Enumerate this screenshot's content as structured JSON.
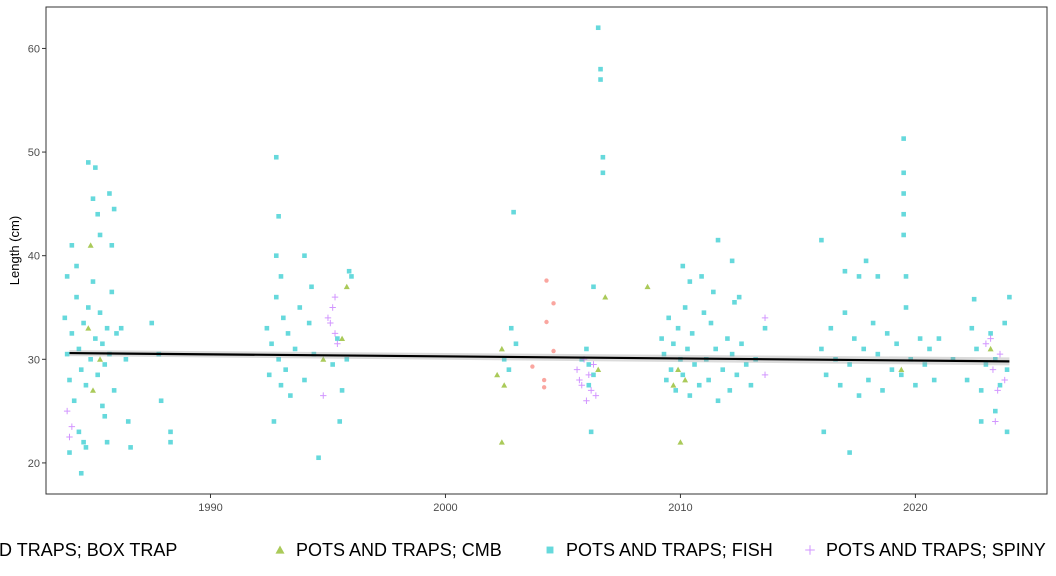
{
  "chart_data": {
    "type": "scatter",
    "title": "",
    "xlabel": "",
    "ylabel": "Length (cm)",
    "xlim": [
      1983.0,
      2025.6
    ],
    "ylim": [
      17.0,
      64.0
    ],
    "xticks": [
      1990,
      2000,
      2010,
      2020
    ],
    "yticks": [
      20,
      30,
      40,
      50,
      60
    ],
    "grid": false,
    "legend_position": "bottom",
    "series": [
      {
        "name": "POTS AND TRAPS; BOX TRAP",
        "marker": "circle",
        "color": "#F8766D",
        "points": [
          [
            2004.3,
            37.6
          ],
          [
            2004.6,
            35.4
          ],
          [
            2004.3,
            33.6
          ],
          [
            2004.2,
            28.0
          ],
          [
            2004.2,
            27.3
          ],
          [
            2004.6,
            30.8
          ],
          [
            2003.7,
            29.3
          ]
        ]
      },
      {
        "name": "POTS AND TRAPS; CMB",
        "marker": "triangle",
        "color": "#7CAE00",
        "points": [
          [
            1984.9,
            41.0
          ],
          [
            1984.8,
            33.0
          ],
          [
            1985.3,
            30.0
          ],
          [
            1985.0,
            27.0
          ],
          [
            1994.8,
            30.0
          ],
          [
            1995.8,
            37.0
          ],
          [
            1995.6,
            32.0
          ],
          [
            2002.4,
            22.0
          ],
          [
            2002.2,
            28.5
          ],
          [
            2002.5,
            27.5
          ],
          [
            2002.4,
            31.0
          ],
          [
            2006.8,
            36.0
          ],
          [
            2006.5,
            29.0
          ],
          [
            2008.6,
            37.0
          ],
          [
            2010.0,
            22.0
          ],
          [
            2009.7,
            27.5
          ],
          [
            2009.9,
            29.0
          ],
          [
            2010.2,
            28.0
          ],
          [
            2019.4,
            29.0
          ],
          [
            2023.2,
            31.0
          ]
        ]
      },
      {
        "name": "POTS AND TRAPS; FISH",
        "marker": "square",
        "color": "#00BFC4",
        "points": [
          [
            1983.8,
            34.0
          ],
          [
            1983.9,
            30.5
          ],
          [
            1984.0,
            28.0
          ],
          [
            1984.1,
            32.5
          ],
          [
            1984.2,
            26.0
          ],
          [
            1984.3,
            36.0
          ],
          [
            1984.4,
            31.0
          ],
          [
            1984.5,
            29.0
          ],
          [
            1984.6,
            33.5
          ],
          [
            1984.7,
            27.5
          ],
          [
            1984.8,
            35.0
          ],
          [
            1984.9,
            30.0
          ],
          [
            1985.0,
            37.5
          ],
          [
            1985.1,
            32.0
          ],
          [
            1985.2,
            28.5
          ],
          [
            1985.3,
            34.5
          ],
          [
            1985.4,
            31.5
          ],
          [
            1985.5,
            29.5
          ],
          [
            1985.6,
            33.0
          ],
          [
            1985.7,
            30.5
          ],
          [
            1985.8,
            36.5
          ],
          [
            1985.9,
            27.0
          ],
          [
            1986.0,
            32.5
          ],
          [
            1983.9,
            38.0
          ],
          [
            1984.1,
            41.0
          ],
          [
            1984.3,
            39.0
          ],
          [
            1984.4,
            23.0
          ],
          [
            1984.6,
            22.0
          ],
          [
            1984.7,
            21.5
          ],
          [
            1984.0,
            21.0
          ],
          [
            1984.8,
            49.0
          ],
          [
            1985.1,
            48.5
          ],
          [
            1985.0,
            45.5
          ],
          [
            1985.2,
            44.0
          ],
          [
            1985.7,
            46.0
          ],
          [
            1985.9,
            44.5
          ],
          [
            1985.3,
            42.0
          ],
          [
            1985.8,
            41.0
          ],
          [
            1984.5,
            19.0
          ],
          [
            1985.5,
            24.5
          ],
          [
            1985.6,
            22.0
          ],
          [
            1985.4,
            25.5
          ],
          [
            1986.2,
            33.0
          ],
          [
            1986.5,
            24.0
          ],
          [
            1986.6,
            21.5
          ],
          [
            1986.4,
            30.0
          ],
          [
            1987.5,
            33.5
          ],
          [
            1987.8,
            30.5
          ],
          [
            1987.9,
            26.0
          ],
          [
            1988.3,
            23.0
          ],
          [
            1988.3,
            22.0
          ],
          [
            1992.4,
            33.0
          ],
          [
            1992.5,
            28.5
          ],
          [
            1992.6,
            31.5
          ],
          [
            1992.8,
            36.0
          ],
          [
            1992.9,
            30.0
          ],
          [
            1993.0,
            27.5
          ],
          [
            1993.1,
            34.0
          ],
          [
            1993.2,
            29.0
          ],
          [
            1993.3,
            32.5
          ],
          [
            1993.4,
            26.5
          ],
          [
            1993.6,
            31.0
          ],
          [
            1993.8,
            35.0
          ],
          [
            1994.0,
            28.0
          ],
          [
            1994.2,
            33.5
          ],
          [
            1994.4,
            30.5
          ],
          [
            1992.8,
            49.5
          ],
          [
            1992.9,
            43.8
          ],
          [
            1992.8,
            40.0
          ],
          [
            1993.0,
            38.0
          ],
          [
            1992.7,
            24.0
          ],
          [
            1994.0,
            40.0
          ],
          [
            1994.3,
            37.0
          ],
          [
            1994.6,
            20.5
          ],
          [
            1995.2,
            29.5
          ],
          [
            1995.4,
            32.0
          ],
          [
            1995.6,
            27.0
          ],
          [
            1995.8,
            30.0
          ],
          [
            1995.9,
            38.5
          ],
          [
            1996.0,
            38.0
          ],
          [
            1995.5,
            24.0
          ],
          [
            2002.5,
            30.0
          ],
          [
            2002.7,
            29.0
          ],
          [
            2002.8,
            33.0
          ],
          [
            2002.9,
            44.2
          ],
          [
            2003.0,
            31.5
          ],
          [
            2005.8,
            30.0
          ],
          [
            2006.0,
            31.0
          ],
          [
            2006.1,
            27.5
          ],
          [
            2006.3,
            28.5
          ],
          [
            2006.5,
            62.0
          ],
          [
            2006.6,
            58.0
          ],
          [
            2006.6,
            57.0
          ],
          [
            2006.7,
            49.5
          ],
          [
            2006.7,
            48.0
          ],
          [
            2006.3,
            37.0
          ],
          [
            2006.1,
            29.5
          ],
          [
            2006.2,
            23.0
          ],
          [
            2009.2,
            32.0
          ],
          [
            2009.3,
            30.5
          ],
          [
            2009.4,
            28.0
          ],
          [
            2009.5,
            34.0
          ],
          [
            2009.6,
            29.0
          ],
          [
            2009.7,
            31.5
          ],
          [
            2009.8,
            27.0
          ],
          [
            2009.9,
            33.0
          ],
          [
            2010.0,
            30.0
          ],
          [
            2010.1,
            28.5
          ],
          [
            2010.2,
            35.0
          ],
          [
            2010.3,
            31.0
          ],
          [
            2010.4,
            26.5
          ],
          [
            2010.5,
            32.5
          ],
          [
            2010.6,
            29.5
          ],
          [
            2010.8,
            27.5
          ],
          [
            2011.0,
            34.5
          ],
          [
            2011.1,
            30.0
          ],
          [
            2011.2,
            28.0
          ],
          [
            2011.3,
            33.5
          ],
          [
            2011.5,
            31.0
          ],
          [
            2011.6,
            26.0
          ],
          [
            2011.8,
            29.0
          ],
          [
            2012.0,
            32.0
          ],
          [
            2012.1,
            27.0
          ],
          [
            2012.2,
            30.5
          ],
          [
            2012.3,
            35.5
          ],
          [
            2012.4,
            28.5
          ],
          [
            2012.6,
            31.5
          ],
          [
            2012.8,
            29.5
          ],
          [
            2013.0,
            27.5
          ],
          [
            2013.2,
            30.0
          ],
          [
            2010.1,
            39.0
          ],
          [
            2010.4,
            37.5
          ],
          [
            2010.9,
            38.0
          ],
          [
            2011.4,
            36.5
          ],
          [
            2011.6,
            41.5
          ],
          [
            2012.2,
            39.5
          ],
          [
            2012.5,
            36.0
          ],
          [
            2013.6,
            33.0
          ],
          [
            2016.0,
            31.0
          ],
          [
            2016.2,
            28.5
          ],
          [
            2016.4,
            33.0
          ],
          [
            2016.6,
            30.0
          ],
          [
            2016.8,
            27.5
          ],
          [
            2017.0,
            34.5
          ],
          [
            2017.2,
            29.5
          ],
          [
            2017.4,
            32.0
          ],
          [
            2017.6,
            26.5
          ],
          [
            2017.8,
            31.0
          ],
          [
            2018.0,
            28.0
          ],
          [
            2018.2,
            33.5
          ],
          [
            2018.4,
            30.5
          ],
          [
            2018.6,
            27.0
          ],
          [
            2018.8,
            32.5
          ],
          [
            2019.0,
            29.0
          ],
          [
            2019.2,
            31.5
          ],
          [
            2019.4,
            28.5
          ],
          [
            2019.6,
            35.0
          ],
          [
            2019.8,
            30.0
          ],
          [
            2020.0,
            27.5
          ],
          [
            2020.2,
            32.0
          ],
          [
            2020.4,
            29.5
          ],
          [
            2020.6,
            31.0
          ],
          [
            2020.8,
            28.0
          ],
          [
            2016.0,
            41.5
          ],
          [
            2016.1,
            23.0
          ],
          [
            2017.2,
            21.0
          ],
          [
            2017.0,
            38.5
          ],
          [
            2017.6,
            38.0
          ],
          [
            2018.4,
            38.0
          ],
          [
            2017.9,
            39.5
          ],
          [
            2019.5,
            51.3
          ],
          [
            2019.5,
            48.0
          ],
          [
            2019.5,
            46.0
          ],
          [
            2019.5,
            44.0
          ],
          [
            2019.5,
            42.0
          ],
          [
            2019.6,
            38.0
          ],
          [
            2021.0,
            32.0
          ],
          [
            2021.6,
            30.0
          ],
          [
            2022.2,
            28.0
          ],
          [
            2022.4,
            33.0
          ],
          [
            2022.5,
            35.8
          ],
          [
            2022.6,
            31.0
          ],
          [
            2022.8,
            27.0
          ],
          [
            2023.0,
            29.5
          ],
          [
            2023.2,
            32.5
          ],
          [
            2023.4,
            30.0
          ],
          [
            2023.6,
            27.5
          ],
          [
            2023.8,
            33.5
          ],
          [
            2023.9,
            29.0
          ],
          [
            2024.0,
            36.0
          ],
          [
            2023.9,
            23.0
          ],
          [
            2022.8,
            24.0
          ],
          [
            2023.4,
            25.0
          ]
        ]
      },
      {
        "name": "POTS AND TRAPS; SPINY",
        "marker": "plus",
        "color": "#C77CFF",
        "points": [
          [
            1983.9,
            25.0
          ],
          [
            1984.0,
            22.5
          ],
          [
            1984.1,
            23.5
          ],
          [
            1994.8,
            26.5
          ],
          [
            1995.0,
            34.0
          ],
          [
            1995.1,
            33.5
          ],
          [
            1995.2,
            35.0
          ],
          [
            1995.3,
            36.0
          ],
          [
            1995.3,
            32.5
          ],
          [
            1995.4,
            31.5
          ],
          [
            2005.6,
            29.0
          ],
          [
            2005.7,
            28.0
          ],
          [
            2005.8,
            27.5
          ],
          [
            2005.9,
            30.0
          ],
          [
            2006.0,
            26.0
          ],
          [
            2006.1,
            28.5
          ],
          [
            2006.2,
            27.0
          ],
          [
            2006.3,
            29.5
          ],
          [
            2006.4,
            26.5
          ],
          [
            2013.6,
            28.5
          ],
          [
            2013.6,
            34.0
          ],
          [
            2023.0,
            31.5
          ],
          [
            2023.2,
            32.0
          ],
          [
            2023.3,
            29.0
          ],
          [
            2023.4,
            24.0
          ],
          [
            2023.5,
            27.0
          ],
          [
            2023.6,
            30.5
          ],
          [
            2023.8,
            28.0
          ]
        ]
      }
    ],
    "trend": {
      "x": [
        1984,
        2024
      ],
      "y": [
        30.6,
        29.8
      ],
      "color": "#000000",
      "band_color": "#999999"
    }
  }
}
